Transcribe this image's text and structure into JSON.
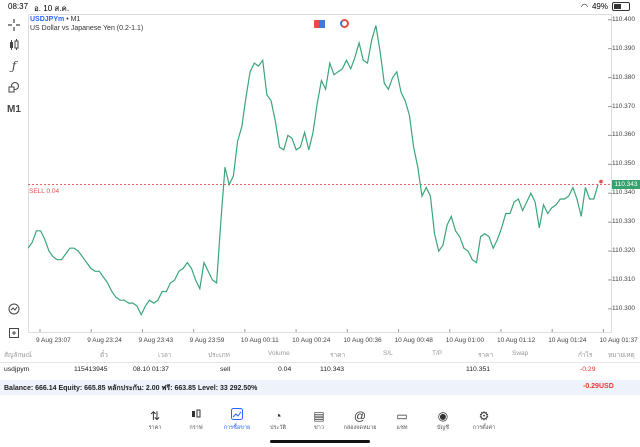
{
  "status_bar": {
    "time": "08:37",
    "date": "อ. 10 ส.ค.",
    "battery": "49%",
    "battery_level": 0.49
  },
  "chart_header": {
    "symbol": "USDJPYm",
    "timeframe": "• M1",
    "description": "US Dollar vs Japanese Yen (0.2-1.1)"
  },
  "left_tools": {
    "timeframe_label": "M1"
  },
  "sell_label": "SELL 0.04",
  "current_price": "110.343",
  "colors": {
    "line": "#3aa57a",
    "sell_line": "#e05050",
    "accent": "#2962ff",
    "loss": "#e53935"
  },
  "chart_data": {
    "type": "line",
    "title": "",
    "xlabel": "",
    "ylabel": "",
    "ylim": [
      110.292,
      110.402
    ],
    "price_ticks": [
      "110.400",
      "110.390",
      "110.380",
      "110.370",
      "110.360",
      "110.350",
      "110.340",
      "110.330",
      "110.320",
      "110.310",
      "110.300"
    ],
    "time_ticks": [
      "9 Aug 23:07",
      "9 Aug 23:24",
      "9 Aug 23:43",
      "9 Aug 23:59",
      "10 Aug 00:11",
      "10 Aug 00:24",
      "10 Aug 00:36",
      "10 Aug 00:48",
      "10 Aug 01:00",
      "10 Aug 01:12",
      "10 Aug 01:24",
      "10 Aug 01:37"
    ],
    "sell_level": 110.343,
    "series": [
      {
        "values": [
          110.321,
          110.323,
          110.327,
          110.327,
          110.324,
          110.32,
          110.318,
          110.317,
          110.317,
          110.319,
          110.321,
          110.321,
          110.32,
          110.318,
          110.316,
          110.314,
          110.313,
          110.313,
          110.311,
          110.309,
          110.306,
          110.304,
          110.303,
          110.303,
          110.302,
          110.302,
          110.301,
          110.298,
          110.301,
          110.303,
          110.302,
          110.303,
          110.306,
          110.306,
          110.309,
          110.31,
          110.313,
          110.314,
          110.316,
          110.314,
          110.31,
          110.307,
          110.316,
          110.313,
          110.31,
          110.309,
          110.33,
          110.349,
          110.343,
          110.346,
          110.358,
          110.363,
          110.373,
          110.382,
          110.385,
          110.384,
          110.386,
          110.374,
          110.372,
          110.365,
          110.356,
          110.355,
          110.36,
          110.359,
          110.355,
          110.356,
          110.361,
          110.355,
          110.361,
          110.371,
          110.379,
          110.376,
          110.385,
          110.381,
          110.382,
          110.383,
          110.386,
          110.383,
          110.387,
          110.392,
          110.386,
          110.385,
          110.393,
          110.398,
          110.389,
          110.378,
          110.376,
          110.38,
          110.382,
          110.375,
          110.372,
          110.367,
          110.356,
          110.349,
          110.339,
          110.342,
          110.339,
          110.326,
          110.32,
          110.322,
          110.329,
          110.332,
          110.327,
          110.325,
          110.321,
          110.32,
          110.317,
          110.316,
          110.325,
          110.326,
          110.325,
          110.321,
          110.324,
          110.328,
          110.333,
          110.333,
          110.337,
          110.338,
          110.334,
          110.337,
          110.34,
          110.337,
          110.328,
          110.336,
          110.333,
          110.335,
          110.336,
          110.338,
          110.338,
          110.339,
          110.342,
          110.338,
          110.332,
          110.342,
          110.338,
          110.338,
          110.343
        ]
      }
    ]
  },
  "table": {
    "headers": [
      "สัญลักษณ์",
      "ตั๋ว",
      "เวลา",
      "ประเภท",
      "Volume",
      "ราคา",
      "S/L",
      "T/P",
      "ราคา",
      "Swap",
      "กำไร",
      "หมายเหตุ"
    ],
    "row": {
      "symbol": "usdjpym",
      "ticket": "115413945",
      "time": "08.10 01:37",
      "type": "sell",
      "volume": "0.04",
      "open_price": "110.343",
      "sl": "",
      "tp": "",
      "price": "110.351",
      "swap": "",
      "profit": "-0.29",
      "comment": ""
    }
  },
  "balance": {
    "text": "Balance: 666.14 Equity: 665.85 หลักประกัน: 2.00 ฟรี: 663.85 Level: 33 292.50%",
    "total": "-0.29",
    "currency": "USD"
  },
  "tabs": [
    {
      "label": "ราคา",
      "icon": "quotes-icon"
    },
    {
      "label": "กราฟ",
      "icon": "candles-icon"
    },
    {
      "label": "การซื้อขาย",
      "icon": "trade-icon"
    },
    {
      "label": "ประวัติ",
      "icon": "history-icon"
    },
    {
      "label": "ข่าว",
      "icon": "news-icon"
    },
    {
      "label": "กล่องจดหมาย",
      "icon": "mail-icon"
    },
    {
      "label": "แชท",
      "icon": "chat-icon"
    },
    {
      "label": "บัญชี",
      "icon": "account-icon"
    },
    {
      "label": "การตั้งค่า",
      "icon": "settings-icon"
    }
  ]
}
